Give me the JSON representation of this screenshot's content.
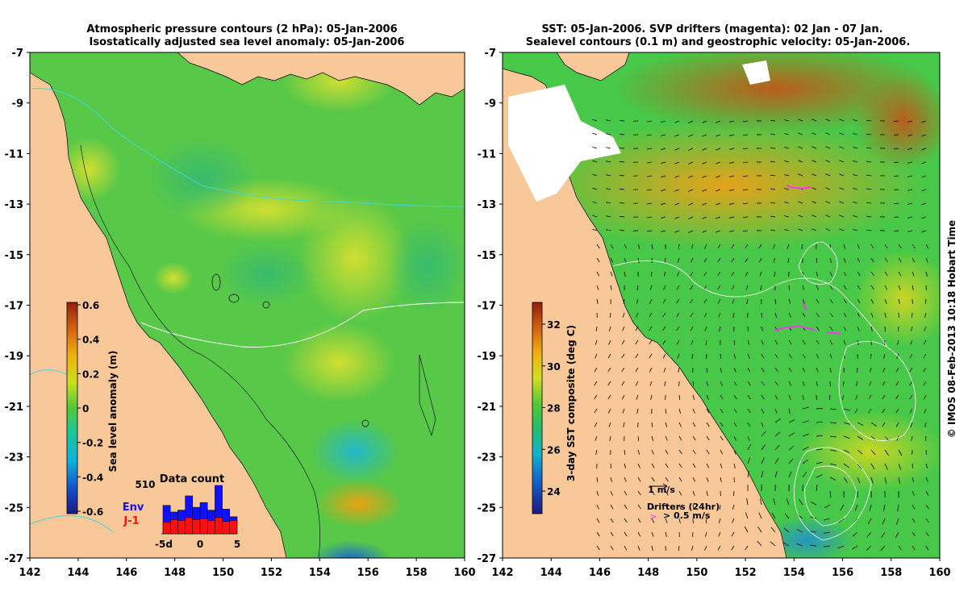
{
  "left_panel": {
    "title_line1": "Atmospheric pressure contours (2 hPa): 05-Jan-2006",
    "title_line2": "Isostatically adjusted sea level anomaly: 05-Jan-2006",
    "colorbar_label": "Sea level anomaly (m)",
    "colorbar_ticks": [
      "-0.6",
      "-0.4",
      "-0.2",
      "0",
      "0.2",
      "0.4",
      "0.6"
    ],
    "inset": {
      "title": "Data count",
      "max_label": "510",
      "env_label": "Env",
      "j1_label": "J-1",
      "x_tick_labels": [
        "-5d",
        "0",
        "5"
      ],
      "env_color": "#1010ff",
      "j1_color": "#ff1010",
      "bins": [
        -5,
        -4,
        -3,
        -2,
        -1,
        0,
        1,
        2,
        3,
        4
      ],
      "env_counts": [
        300,
        230,
        250,
        400,
        280,
        330,
        250,
        510,
        260,
        180
      ],
      "j1_counts": [
        120,
        150,
        140,
        170,
        150,
        160,
        140,
        170,
        130,
        140
      ]
    }
  },
  "right_panel": {
    "title_line1": "SST: 05-Jan-2006. SVP drifters (magenta): 02 Jan - 07 Jan.",
    "title_line2": "Sealevel contours (0.1 m) and geostrophic velocity: 05-Jan-2006.",
    "colorbar_label": "3-day SST composite (deg C)",
    "colorbar_ticks": [
      "24",
      "26",
      "28",
      "30",
      "32"
    ],
    "velocity_label": "1 m/s",
    "drifters_label": "Drifters (24hr)",
    "drifter_speed_label": "> 0.5 m/s",
    "drifter_color": "#ff33ff"
  },
  "shared_axes": {
    "y_ticks": [
      "-7",
      "-9",
      "-11",
      "-13",
      "-15",
      "-17",
      "-19",
      "-21",
      "-23",
      "-25",
      "-27"
    ],
    "x_ticks": [
      "142",
      "144",
      "146",
      "148",
      "150",
      "152",
      "154",
      "156",
      "158",
      "160"
    ]
  },
  "credit": "© IMOS 08-Feb-2013 10:18 Hobart Time",
  "colors": {
    "land": "#f8c898",
    "sla_base": "#58c848",
    "sst_base": "#48c848",
    "contour_white": "#ffffff",
    "contour_cyan": "#40d8d8"
  },
  "chart_data": [
    {
      "type": "heatmap",
      "title": "Atmospheric pressure contours (2 hPa): 05-Jan-2006 / Isostatically adjusted sea level anomaly: 05-Jan-2006",
      "x_range": [
        142,
        160
      ],
      "y_range": [
        -27,
        -7
      ],
      "colorbar": {
        "label": "Sea level anomaly (m)",
        "range": [
          -0.6,
          0.6
        ]
      }
    },
    {
      "type": "bar",
      "title": "Data count",
      "categories": [
        -5,
        -4,
        -3,
        -2,
        -1,
        0,
        1,
        2,
        3,
        4
      ],
      "series": [
        {
          "name": "Env",
          "values": [
            300,
            230,
            250,
            400,
            280,
            330,
            250,
            510,
            260,
            180
          ]
        },
        {
          "name": "J-1",
          "values": [
            120,
            150,
            140,
            170,
            150,
            160,
            140,
            170,
            130,
            140
          ]
        }
      ],
      "ylim": [
        0,
        510
      ]
    },
    {
      "type": "heatmap",
      "title": "SST: 05-Jan-2006. SVP drifters (magenta): 02 Jan - 07 Jan. / Sealevel contours (0.1 m) and geostrophic velocity: 05-Jan-2006.",
      "x_range": [
        142,
        160
      ],
      "y_range": [
        -27,
        -7
      ],
      "colorbar": {
        "label": "3-day SST composite (deg C)",
        "range": [
          23,
          33
        ]
      }
    }
  ]
}
